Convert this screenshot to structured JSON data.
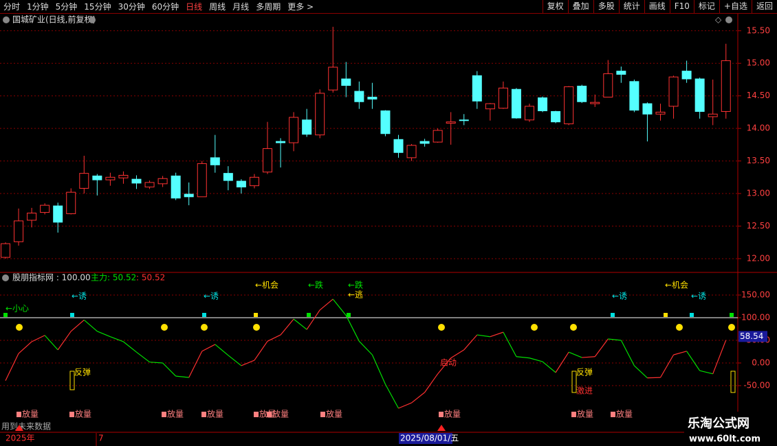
{
  "toolbar": {
    "left": [
      "分时",
      "1分钟",
      "5分钟",
      "15分钟",
      "30分钟",
      "60分钟",
      "日线",
      "周线",
      "月线",
      "多周期",
      "更多 >"
    ],
    "right": [
      "复权",
      "叠加",
      "多股",
      "统计",
      "画线",
      "F10",
      "标记",
      "+自选",
      "返回"
    ]
  },
  "chart_data": [
    {
      "type": "candlestick",
      "title": "国城矿业(日线,前复权)",
      "up_color": "#ff3232",
      "down_color": "#54ffff",
      "grid": true,
      "open": [
        12.02,
        12.26,
        12.59,
        12.71,
        12.81,
        12.69,
        13.08,
        13.27,
        13.21,
        13.24,
        13.22,
        13.1,
        13.15,
        13.27,
        12.99,
        12.95,
        13.55,
        13.31,
        13.19,
        13.12,
        13.33,
        13.8,
        13.78,
        14.13,
        13.9,
        14.59,
        14.76,
        14.57,
        14.48,
        14.27,
        13.83,
        13.55,
        13.8,
        13.79,
        14.08,
        14.13,
        14.81,
        14.3,
        14.31,
        14.6,
        14.13,
        14.47,
        14.26,
        14.07,
        14.65,
        14.38,
        14.48,
        14.88,
        14.72,
        14.38,
        14.22,
        14.34,
        14.88,
        14.76,
        14.18,
        14.26
      ],
      "high": [
        12.25,
        12.77,
        12.78,
        12.85,
        12.86,
        13.08,
        13.58,
        13.3,
        13.32,
        13.34,
        13.28,
        13.2,
        13.27,
        13.32,
        13.17,
        13.5,
        13.9,
        13.42,
        13.22,
        13.3,
        14.1,
        13.85,
        14.25,
        14.3,
        14.6,
        15.56,
        15.02,
        14.72,
        14.7,
        14.28,
        13.9,
        13.76,
        13.84,
        14.0,
        14.25,
        14.22,
        14.88,
        14.39,
        14.72,
        14.62,
        14.38,
        14.49,
        14.27,
        14.65,
        14.67,
        14.52,
        15.05,
        14.95,
        14.75,
        14.4,
        14.38,
        14.81,
        15.04,
        14.78,
        14.75,
        15.3
      ],
      "low": [
        12.0,
        12.2,
        12.48,
        12.68,
        12.4,
        12.68,
        13.0,
        12.97,
        13.12,
        13.15,
        13.07,
        13.07,
        13.1,
        12.9,
        12.82,
        12.95,
        13.32,
        13.05,
        13.0,
        13.08,
        13.3,
        13.4,
        13.65,
        13.87,
        13.85,
        14.55,
        14.48,
        14.3,
        14.3,
        13.88,
        13.55,
        13.5,
        13.72,
        13.78,
        13.75,
        14.05,
        14.3,
        14.12,
        14.3,
        14.15,
        14.1,
        14.25,
        14.08,
        14.05,
        14.39,
        14.33,
        14.48,
        14.7,
        14.25,
        13.8,
        14.12,
        14.15,
        14.7,
        14.15,
        14.05,
        14.15
      ],
      "close": [
        12.23,
        12.58,
        12.7,
        12.82,
        12.56,
        13.02,
        13.31,
        13.21,
        13.25,
        13.28,
        13.16,
        13.17,
        13.23,
        12.93,
        12.95,
        13.46,
        13.44,
        13.2,
        13.1,
        13.25,
        13.69,
        13.78,
        14.17,
        13.91,
        14.54,
        14.94,
        14.66,
        14.41,
        14.45,
        13.92,
        13.63,
        13.74,
        13.77,
        13.97,
        14.1,
        14.12,
        14.42,
        14.38,
        14.62,
        14.16,
        14.34,
        14.27,
        14.1,
        14.64,
        14.41,
        14.4,
        14.84,
        14.83,
        14.28,
        14.22,
        14.25,
        14.79,
        14.76,
        14.26,
        14.22,
        15.04
      ],
      "ylim": [
        11.81,
        15.74
      ],
      "yticks": [
        {
          "value": 15.5,
          "label": "15.50"
        },
        {
          "value": 15,
          "label": "15.00"
        },
        {
          "value": 14.5,
          "label": "14.50"
        },
        {
          "value": 14,
          "label": "14.00"
        },
        {
          "value": 13.5,
          "label": "13.50"
        },
        {
          "value": 13,
          "label": "13.00"
        },
        {
          "value": 12.5,
          "label": "12.50"
        },
        {
          "value": 12,
          "label": "12.00"
        }
      ]
    },
    {
      "type": "line",
      "title": "股朋指标网 : 100.00",
      "main_label": "主力: 50.52",
      "value_label": ": 50.52",
      "up_color": "#ff3030",
      "down_color": "#00e000",
      "grid": true,
      "values": [
        -39,
        21,
        47,
        61,
        29,
        70,
        95,
        70,
        58,
        47,
        24,
        2,
        0,
        -29,
        -32,
        26,
        41,
        17,
        -6,
        6,
        48,
        62,
        97,
        74,
        117,
        141,
        105,
        48,
        18,
        -47,
        -100,
        -88,
        -65,
        -24,
        11,
        29,
        62,
        58,
        68,
        14,
        11,
        3,
        -21,
        24,
        12,
        14,
        53,
        50,
        -6,
        -33,
        -32,
        18,
        26,
        -17,
        -24,
        50.52
      ],
      "cursor_value": {
        "value": 58.54,
        "label": "58.54"
      },
      "ylim": [
        -150,
        198.5
      ],
      "yticks": [
        {
          "value": 150,
          "label": "150.00"
        },
        {
          "value": 100,
          "label": "100.00"
        },
        {
          "value": 50,
          "label": "50.00"
        },
        {
          "value": 0,
          "label": "0.00"
        },
        {
          "value": -50,
          "label": "-50.00"
        }
      ],
      "annotations": [
        "←小心",
        "←诱",
        "←诱",
        "←机会",
        "←跌",
        "←跌",
        "←逃",
        "←诱",
        "←机会",
        "←诱",
        "反弹",
        "启动",
        "反弹",
        "激进"
      ],
      "volume_labels": [
        "放量",
        "放量",
        "放量",
        "放量",
        "放量",
        "放量",
        "放量",
        "放量",
        "放量",
        "放量"
      ],
      "note": "用到未来数据"
    }
  ],
  "date_axis": [
    "2025年",
    "7",
    "2025/08/01/五"
  ],
  "watermark": {
    "name": "乐淘公式网",
    "url": "www.60lt.com"
  }
}
